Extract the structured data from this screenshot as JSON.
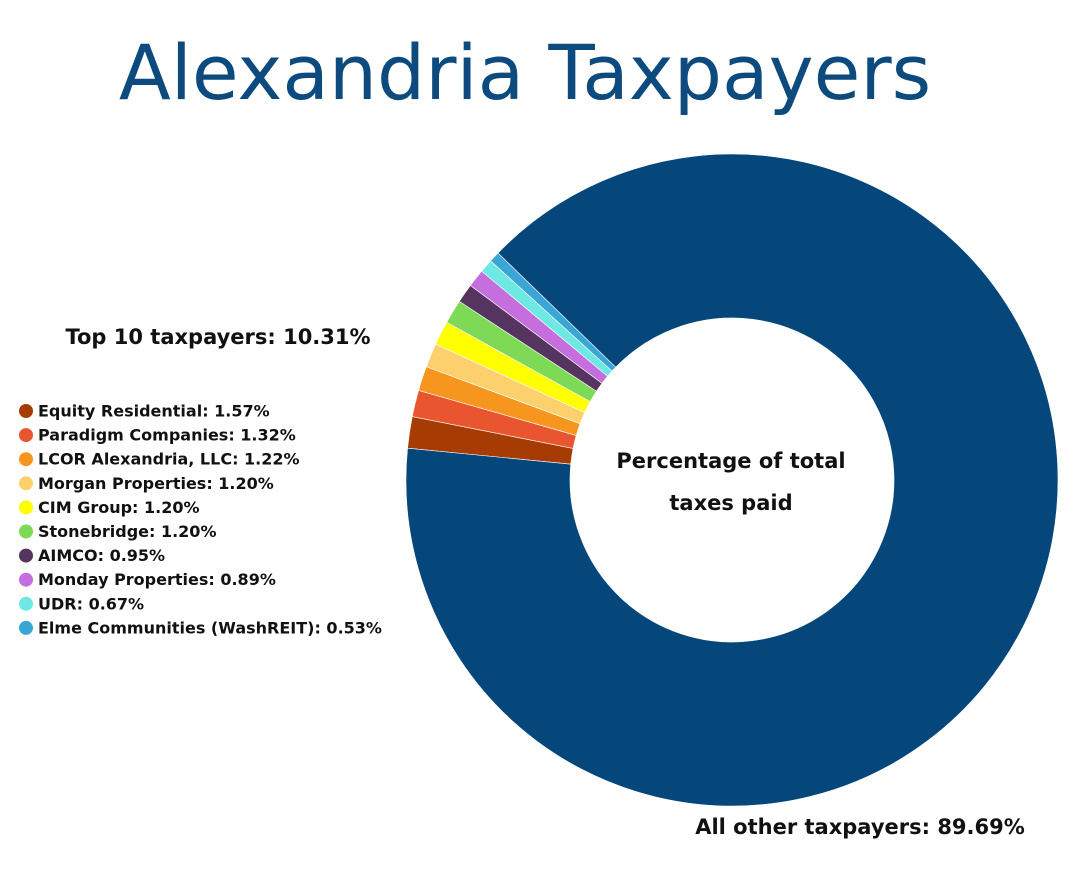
{
  "chart_data": {
    "type": "donut",
    "title": "Alexandria Taxpayers",
    "annotation": "Top 10 taxpayers: 10.31%",
    "center_label": [
      "Percentage of total",
      "taxes paid"
    ],
    "categories": [
      "Equity Residential: 1.57%",
      "Paradigm Companies: 1.32%",
      "LCOR Alexandria, LLC: 1.22%",
      "Morgan Properties: 1.20%",
      "CIM Group: 1.20%",
      "Stonebridge: 1.20%",
      "AIMCO: 0.95%",
      "Monday Properties: 0.89%",
      "UDR: 0.67%",
      "Elme Communities (WashREIT): 0.53%",
      "All other taxpayers: 89.69%"
    ],
    "values": [
      1.57,
      1.32,
      1.22,
      1.2,
      1.2,
      1.2,
      0.95,
      0.89,
      0.67,
      0.53,
      89.69
    ],
    "colors": [
      "#a63c04",
      "#e8552e",
      "#f7961f",
      "#fdd06e",
      "#ffff00",
      "#7ed957",
      "#563460",
      "#c56fde",
      "#6ee8e3",
      "#3aa6d6",
      "#05467b"
    ]
  }
}
